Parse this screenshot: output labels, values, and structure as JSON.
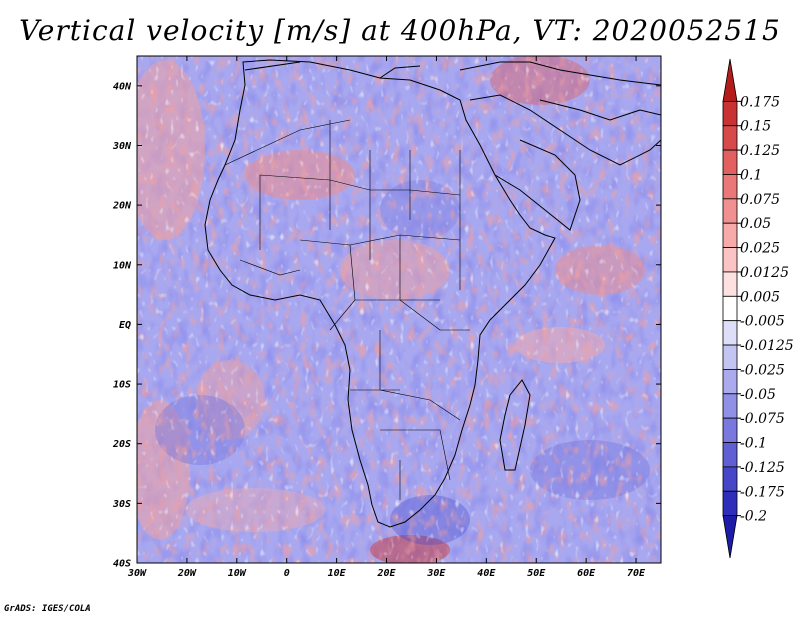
{
  "title": "Vertical velocity [m/s] at 400hPa, VT: 2020052515",
  "credit": "GrADS: IGES/COLA",
  "map": {
    "lon_range": [
      -30,
      75
    ],
    "lat_range": [
      -40,
      45
    ],
    "lat_ticks": [
      {
        "value": 40,
        "label": "40N"
      },
      {
        "value": 30,
        "label": "30N"
      },
      {
        "value": 20,
        "label": "20N"
      },
      {
        "value": 10,
        "label": "10N"
      },
      {
        "value": 0,
        "label": "EQ"
      },
      {
        "value": -10,
        "label": "10S"
      },
      {
        "value": -20,
        "label": "20S"
      },
      {
        "value": -30,
        "label": "30S"
      },
      {
        "value": -40,
        "label": "40S"
      }
    ],
    "lon_ticks": [
      {
        "value": -30,
        "label": "30W"
      },
      {
        "value": -20,
        "label": "20W"
      },
      {
        "value": -10,
        "label": "10W"
      },
      {
        "value": 0,
        "label": "0"
      },
      {
        "value": 10,
        "label": "10E"
      },
      {
        "value": 20,
        "label": "20E"
      },
      {
        "value": 30,
        "label": "30E"
      },
      {
        "value": 40,
        "label": "40E"
      },
      {
        "value": 50,
        "label": "50E"
      },
      {
        "value": 60,
        "label": "60E"
      },
      {
        "value": 70,
        "label": "70E"
      }
    ]
  },
  "colorbar": {
    "labels": [
      "0.175",
      "0.15",
      "0.125",
      "0.1",
      "0.075",
      "0.05",
      "0.025",
      "0.0125",
      "0.005",
      "-0.005",
      "-0.0125",
      "-0.025",
      "-0.05",
      "-0.075",
      "-0.1",
      "-0.125",
      "-0.175",
      "-0.2"
    ],
    "colors": [
      "#b41c1c",
      "#c83232",
      "#d64a4a",
      "#e26060",
      "#ea7878",
      "#f09090",
      "#f6aaaa",
      "#fac4c4",
      "#fde0e0",
      "#ffffff",
      "#dedef8",
      "#c4c4f2",
      "#aaaaec",
      "#9090e6",
      "#7878de",
      "#6060d4",
      "#4646c8",
      "#2e2eba",
      "#1c1ca8"
    ]
  }
}
